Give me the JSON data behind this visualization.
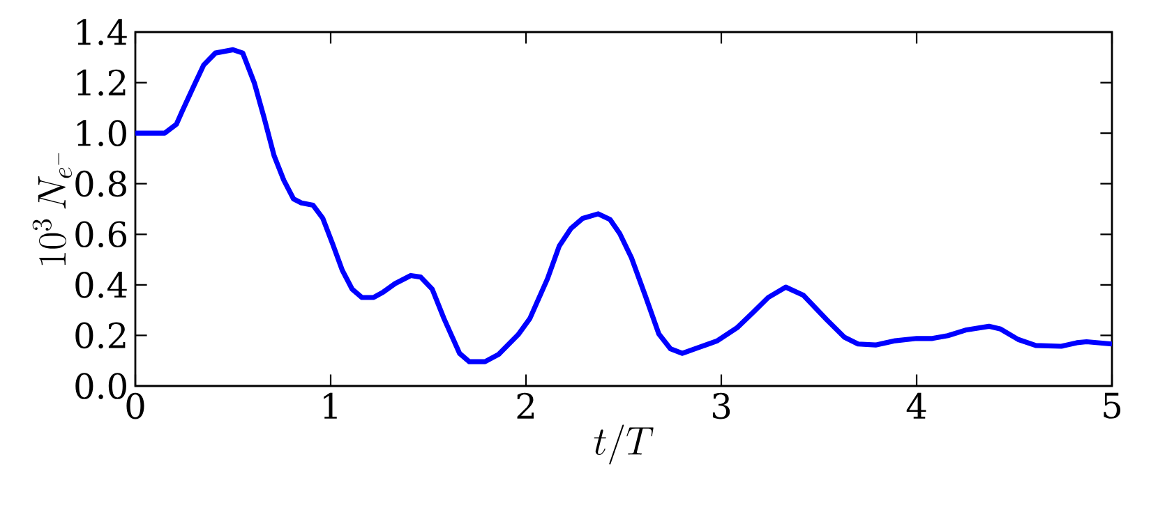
{
  "chart_data": {
    "type": "line",
    "xlabel": "t/T",
    "ylabel": "10^{3}\\,N_{e^{-}}",
    "x": [
      0,
      0.15,
      0.21,
      0.24,
      0.3,
      0.35,
      0.41,
      0.5,
      0.55,
      0.61,
      0.66,
      0.71,
      0.76,
      0.81,
      0.85,
      0.91,
      0.96,
      1.01,
      1.06,
      1.11,
      1.16,
      1.22,
      1.27,
      1.33,
      1.41,
      1.46,
      1.52,
      1.58,
      1.66,
      1.71,
      1.79,
      1.86,
      1.96,
      2.02,
      2.11,
      2.17,
      2.23,
      2.29,
      2.37,
      2.43,
      2.48,
      2.54,
      2.61,
      2.68,
      2.74,
      2.8,
      2.88,
      2.98,
      3.08,
      3.16,
      3.24,
      3.33,
      3.42,
      3.54,
      3.63,
      3.7,
      3.79,
      3.89,
      4.0,
      4.08,
      4.16,
      4.25,
      4.37,
      4.43,
      4.52,
      4.61,
      4.74,
      4.82,
      4.87,
      5.0
    ],
    "series": [
      {
        "color": "#0000ff",
        "values": [
          1.0,
          1.0,
          1.035,
          1.087,
          1.188,
          1.27,
          1.317,
          1.33,
          1.317,
          1.197,
          1.059,
          0.912,
          0.814,
          0.74,
          0.724,
          0.715,
          0.663,
          0.562,
          0.457,
          0.383,
          0.35,
          0.35,
          0.372,
          0.405,
          0.437,
          0.431,
          0.383,
          0.267,
          0.129,
          0.096,
          0.096,
          0.125,
          0.203,
          0.267,
          0.424,
          0.553,
          0.623,
          0.663,
          0.681,
          0.659,
          0.603,
          0.507,
          0.359,
          0.206,
          0.147,
          0.129,
          0.151,
          0.179,
          0.23,
          0.289,
          0.35,
          0.391,
          0.359,
          0.262,
          0.193,
          0.166,
          0.162,
          0.179,
          0.188,
          0.188,
          0.199,
          0.221,
          0.236,
          0.225,
          0.184,
          0.16,
          0.157,
          0.171,
          0.175,
          0.166
        ]
      }
    ],
    "xlim": [
      0,
      5
    ],
    "ylim": [
      0,
      1.4
    ],
    "xticks": [
      0,
      1,
      2,
      3,
      4,
      5
    ],
    "yticks": [
      {
        "value": 0,
        "label": "0.0"
      },
      {
        "value": 0.2,
        "label": "0.2"
      },
      {
        "value": 0.4,
        "label": "0.4"
      },
      {
        "value": 0.6,
        "label": "0.6"
      },
      {
        "value": 0.8,
        "label": "0.8"
      },
      {
        "value": 1.0,
        "label": "1.0"
      },
      {
        "value": 1.2,
        "label": "1.2"
      },
      {
        "value": 1.4,
        "label": "1.4"
      }
    ],
    "grid": false,
    "marker": "none",
    "line_style": "solid"
  }
}
